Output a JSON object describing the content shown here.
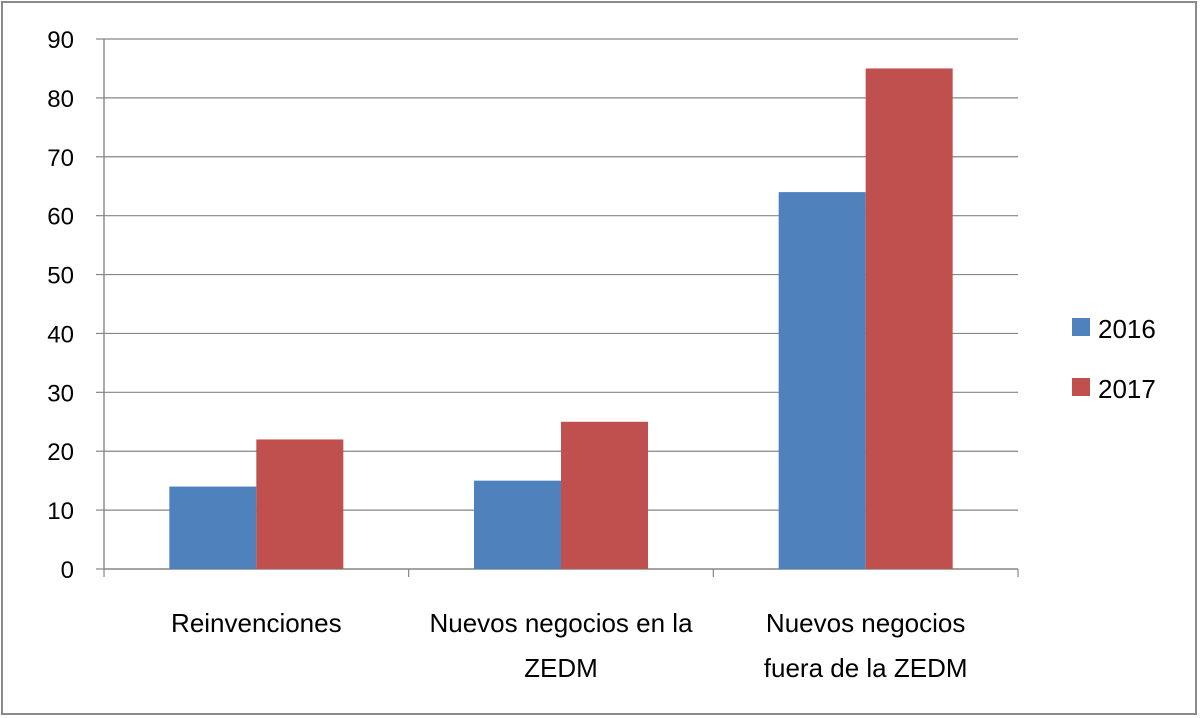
{
  "chart_data": {
    "type": "bar",
    "title": "",
    "xlabel": "",
    "ylabel": "",
    "categories": [
      [
        "Reinvenciones"
      ],
      [
        "Nuevos negocios en la",
        "ZEDM"
      ],
      [
        "Nuevos negocios",
        "fuera de la ZEDM"
      ]
    ],
    "series": [
      {
        "name": "2016",
        "values": [
          14,
          15,
          64
        ],
        "color": "#4F81BD"
      },
      {
        "name": "2017",
        "values": [
          22,
          25,
          85
        ],
        "color": "#C0504D"
      }
    ],
    "ylim": [
      0,
      90
    ],
    "yticks": [
      0,
      10,
      20,
      30,
      40,
      50,
      60,
      70,
      80,
      90
    ],
    "grid": true,
    "legend_position": "right"
  }
}
